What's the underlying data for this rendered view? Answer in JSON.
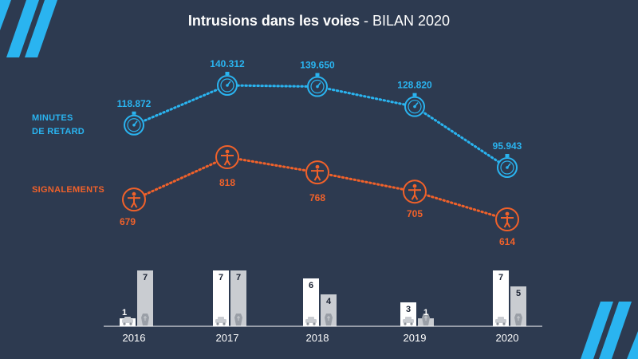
{
  "header": {
    "title_bold": "Intrusions dans les voies",
    "title_sep": " - ",
    "title_rest": "BILAN 2020"
  },
  "legend": {
    "minutes_line1": "MINUTES",
    "minutes_line2": "DE RETARD",
    "signalements": "SIGNALEMENTS"
  },
  "colors": {
    "background": "#2d3a50",
    "minutes": "#2ab4f0",
    "signalements": "#f0612a",
    "bar_white": "#ffffff",
    "bar_grey": "#c9ccd1",
    "axis_text": "#ffffff"
  },
  "chart_data": [
    {
      "type": "line",
      "x": [
        "2016",
        "2017",
        "2018",
        "2019",
        "2020"
      ],
      "series": [
        {
          "name": "MINUTES DE RETARD",
          "values": [
            118872,
            140312,
            139650,
            128820,
            95943
          ],
          "labels": [
            "118.872",
            "140.312",
            "139.650",
            "128.820",
            "95.943"
          ],
          "icon": "stopwatch-icon"
        },
        {
          "name": "SIGNALEMENTS",
          "values": [
            679,
            818,
            768,
            705,
            614
          ],
          "labels": [
            "679",
            "818",
            "768",
            "705",
            "614"
          ],
          "icon": "person-icon"
        }
      ],
      "line_style": "dotted"
    },
    {
      "type": "bar",
      "categories": [
        "2016",
        "2017",
        "2018",
        "2019",
        "2020"
      ],
      "series": [
        {
          "icon": "car-icon",
          "values": [
            1,
            7,
            6,
            3,
            7
          ]
        },
        {
          "icon": "coffin-icon",
          "values": [
            7,
            7,
            4,
            1,
            5
          ]
        }
      ],
      "ylim": [
        0,
        7
      ]
    }
  ]
}
